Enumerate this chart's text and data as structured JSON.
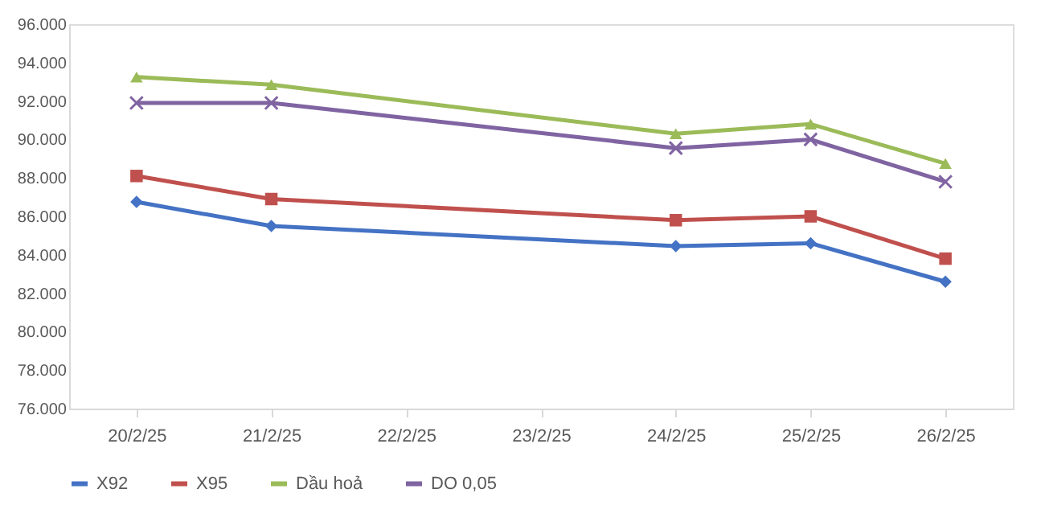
{
  "chart_data": {
    "type": "line",
    "categories": [
      "20/2/25",
      "21/2/25",
      "22/2/25",
      "23/2/25",
      "24/2/25",
      "25/2/25",
      "26/2/25"
    ],
    "series": [
      {
        "name": "X92",
        "color": "#4472c4",
        "marker": "diamond",
        "values": [
          86750,
          85500,
          null,
          null,
          84450,
          84600,
          82600
        ]
      },
      {
        "name": "X95",
        "color": "#c0504d",
        "marker": "square",
        "values": [
          88100,
          86900,
          null,
          null,
          85800,
          86000,
          83800
        ]
      },
      {
        "name": "Dầu hoả",
        "color": "#9bbb59",
        "marker": "triangle",
        "values": [
          93250,
          92850,
          null,
          null,
          90300,
          90800,
          88750
        ]
      },
      {
        "name": "DO 0,05",
        "color": "#8064a2",
        "marker": "cross",
        "values": [
          91900,
          91900,
          null,
          null,
          89550,
          90000,
          87800
        ]
      }
    ],
    "ylim": [
      76000,
      96000
    ],
    "yticks": [
      {
        "value": 76000,
        "label": "76.000"
      },
      {
        "value": 78000,
        "label": "78.000"
      },
      {
        "value": 80000,
        "label": "80.000"
      },
      {
        "value": 82000,
        "label": "82.000"
      },
      {
        "value": 84000,
        "label": "84.000"
      },
      {
        "value": 86000,
        "label": "86.000"
      },
      {
        "value": 88000,
        "label": "88.000"
      },
      {
        "value": 90000,
        "label": "90.000"
      },
      {
        "value": 92000,
        "label": "92.000"
      },
      {
        "value": 94000,
        "label": "94.000"
      },
      {
        "value": 96000,
        "label": "96.000"
      }
    ],
    "grid": false,
    "legend": "bottom",
    "line_style": "solid"
  }
}
